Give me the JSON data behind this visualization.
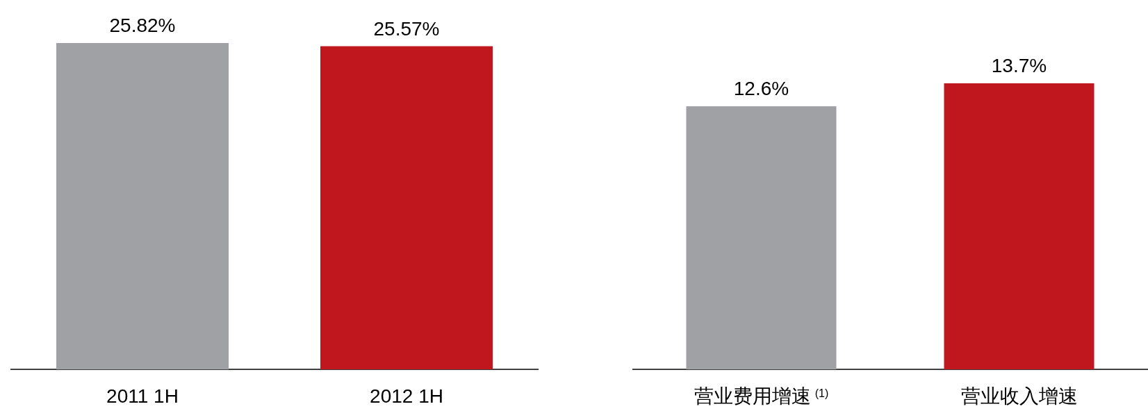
{
  "chart_data": [
    {
      "type": "bar",
      "categories": [
        "2011 1H",
        "2012 1H"
      ],
      "values": [
        25.82,
        25.57
      ],
      "colors": [
        "#a0a1a5",
        "#c0161e"
      ],
      "data_labels": true,
      "value_labels": [
        "25.82%",
        "25.57%"
      ]
    },
    {
      "type": "bar",
      "categories": [
        "营业费用增速$^{(1)}$",
        "营业收入增速"
      ],
      "values": [
        12.6,
        13.7
      ],
      "colors": [
        "#a0a1a5",
        "#c0161e"
      ],
      "data_labels": true,
      "value_labels": [
        "12.6%",
        "13.7%"
      ]
    }
  ]
}
